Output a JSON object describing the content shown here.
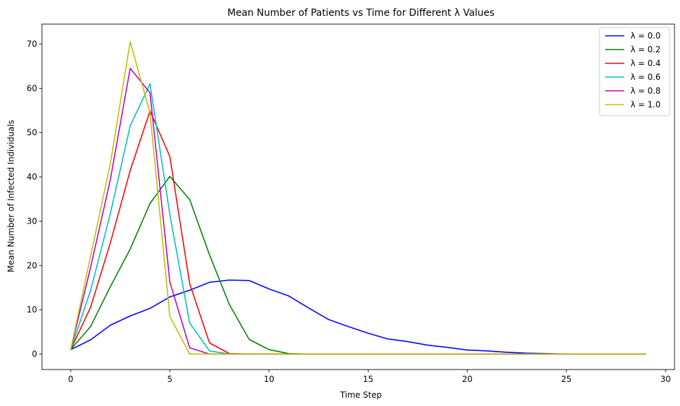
{
  "chart_data": {
    "type": "line",
    "title": "Mean Number of Patients vs Time for Different λ Values",
    "xlabel": "Time Step",
    "ylabel": "Mean Number of Infected Individuals",
    "xlim": [
      -1.45,
      30.45
    ],
    "ylim": [
      -3.5,
      74.5
    ],
    "xticks": [
      0,
      5,
      10,
      15,
      20,
      25,
      30
    ],
    "yticks": [
      0,
      10,
      20,
      30,
      40,
      50,
      60,
      70
    ],
    "grid": false,
    "legend_position": "top-right",
    "x": [
      0,
      1,
      2,
      3,
      4,
      5,
      6,
      7,
      8,
      9,
      10,
      11,
      12,
      13,
      14,
      15,
      16,
      17,
      18,
      19,
      20,
      21,
      22,
      23,
      24,
      25,
      26,
      27,
      28,
      29
    ],
    "series": [
      {
        "name": "λ = 0.0",
        "color": "#0000ff",
        "values": [
          1,
          3.2,
          6.5,
          8.6,
          10.3,
          12.9,
          14.4,
          16.2,
          16.7,
          16.6,
          14.7,
          13.1,
          10.4,
          7.8,
          6.2,
          4.7,
          3.4,
          2.8,
          2.0,
          1.5,
          0.9,
          0.7,
          0.4,
          0.2,
          0.1,
          0,
          0,
          0,
          0,
          0
        ]
      },
      {
        "name": "λ = 0.2",
        "color": "#008000",
        "values": [
          1,
          6.2,
          15.2,
          23.7,
          34.0,
          40.1,
          34.9,
          22.4,
          11.2,
          3.3,
          1.0,
          0.1,
          0,
          0,
          0,
          0,
          0,
          0,
          0,
          0,
          0,
          0,
          0,
          0,
          0,
          0,
          0,
          0,
          0,
          0
        ]
      },
      {
        "name": "λ = 0.4",
        "color": "#ff0000",
        "values": [
          1,
          10.5,
          25.1,
          41.4,
          54.9,
          44.6,
          15.9,
          2.5,
          0.1,
          0,
          0,
          0,
          0,
          0,
          0,
          0,
          0,
          0,
          0,
          0,
          0,
          0,
          0,
          0,
          0,
          0,
          0,
          0,
          0,
          0
        ]
      },
      {
        "name": "λ = 0.6",
        "color": "#00bfbf",
        "values": [
          1,
          14.3,
          31.7,
          51.5,
          61.0,
          31.5,
          7.0,
          0.7,
          0,
          0,
          0,
          0,
          0,
          0,
          0,
          0,
          0,
          0,
          0,
          0,
          0,
          0,
          0,
          0,
          0,
          0,
          0,
          0,
          0,
          0
        ]
      },
      {
        "name": "λ = 0.8",
        "color": "#bf00bf",
        "values": [
          1,
          19.5,
          39.4,
          64.5,
          59.0,
          16.3,
          1.4,
          0,
          0,
          0,
          0,
          0,
          0,
          0,
          0,
          0,
          0,
          0,
          0,
          0,
          0,
          0,
          0,
          0,
          0,
          0,
          0,
          0,
          0,
          0
        ]
      },
      {
        "name": "λ = 1.0",
        "color": "#bfbf00",
        "values": [
          1,
          22.0,
          43.0,
          70.5,
          54.5,
          8.5,
          0,
          0,
          0,
          0,
          0,
          0,
          0,
          0,
          0,
          0,
          0,
          0,
          0,
          0,
          0,
          0,
          0,
          0,
          0,
          0,
          0,
          0,
          0,
          0
        ]
      }
    ]
  }
}
